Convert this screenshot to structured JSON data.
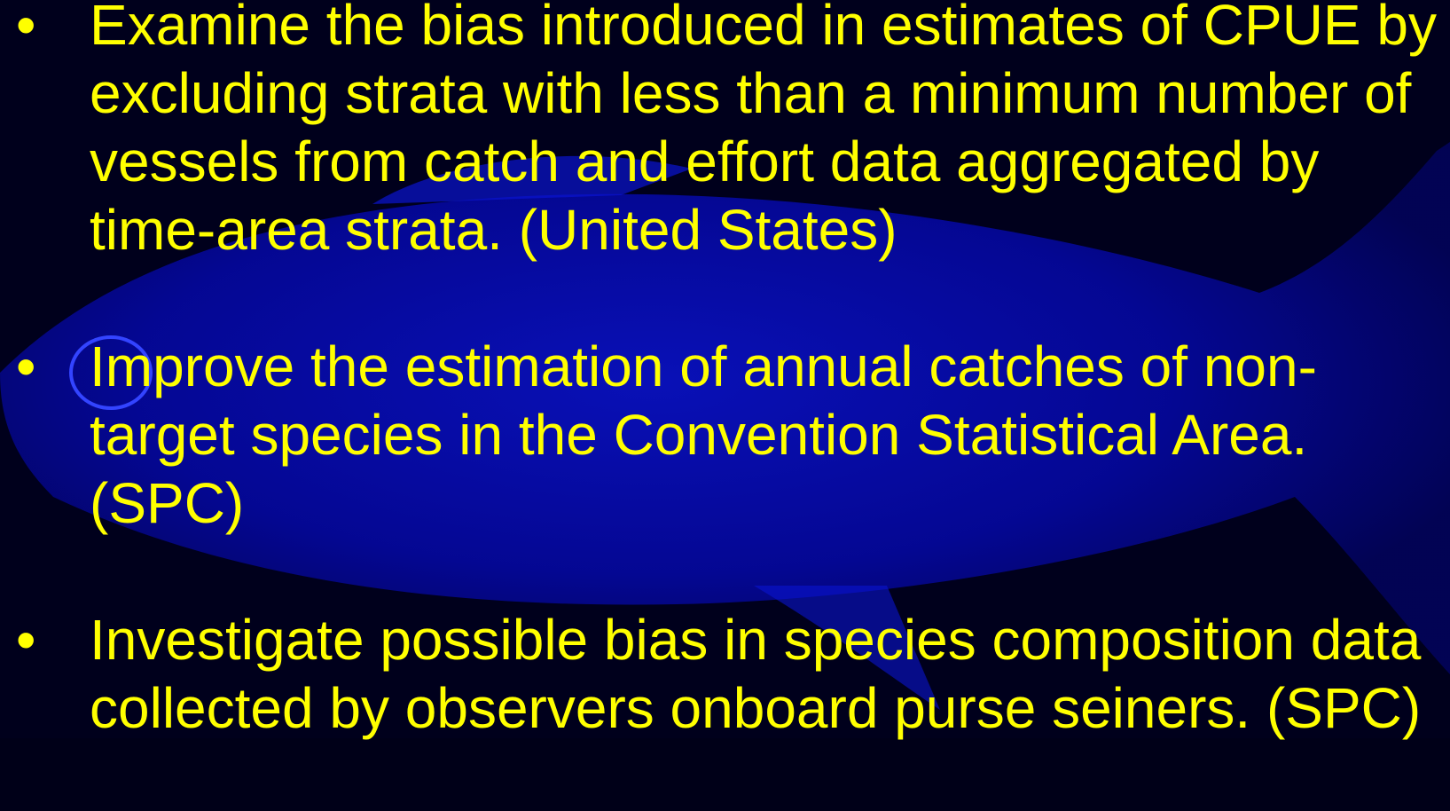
{
  "bullets": [
    "Examine the bias introduced in estimates of CPUE by excluding strata with less than a minimum number of vessels from catch and effort data aggregated by time-area strata. (United States)",
    "Improve the estimation of annual catches of non-target species in the Convention Statistical Area. (SPC)",
    "Investigate possible bias in species composition data collected by observers onboard purse seiners. (SPC)"
  ]
}
